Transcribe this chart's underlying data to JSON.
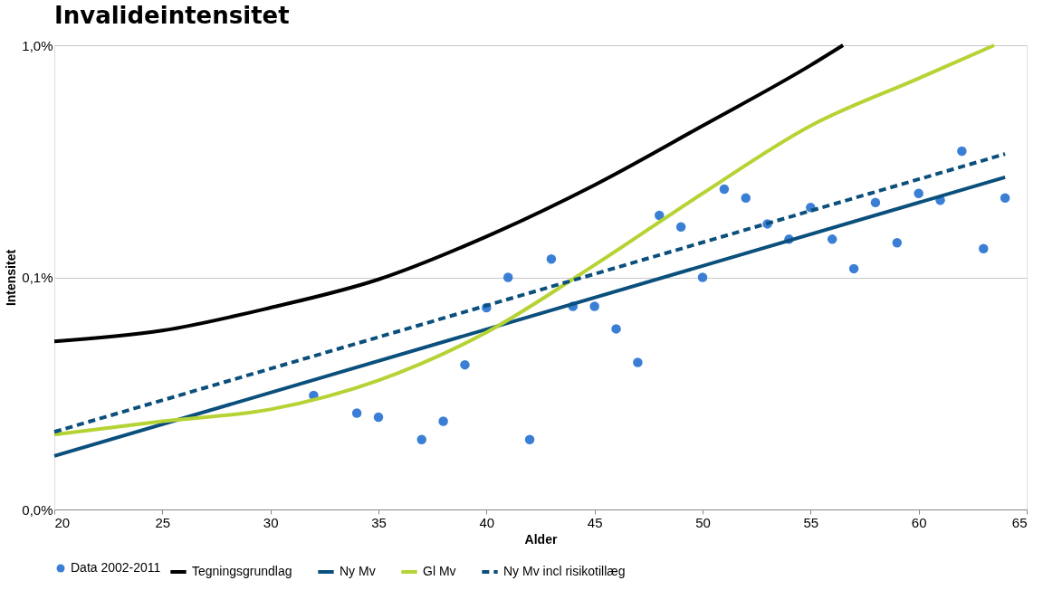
{
  "chart_data": {
    "type": "line",
    "title": "Invalideintensitet",
    "xlabel": "Alder",
    "ylabel": "Intensitet",
    "log": "y",
    "grid": "y",
    "legend": "bottom",
    "xlim": [
      20,
      65
    ],
    "xticks": [
      20,
      25,
      30,
      35,
      40,
      45,
      50,
      55,
      60,
      65
    ],
    "ylim": [
      0.01,
      1
    ],
    "yticks": [
      {
        "value": 0.01,
        "label": "0,0%"
      },
      {
        "value": 0.1,
        "label": "0,1%"
      },
      {
        "value": 1,
        "label": "1,0%"
      }
    ],
    "series": [
      {
        "name": "Data 2002-2011",
        "type": "scatter",
        "marker": "circle",
        "color": "#3a7fd5",
        "x": [
          32,
          34,
          35,
          37,
          38,
          39,
          40,
          41,
          42,
          43,
          44,
          45,
          46,
          47,
          48,
          49,
          50,
          51,
          52,
          53,
          54,
          55,
          56,
          57,
          58,
          59,
          60,
          61,
          62,
          63,
          64
        ],
        "values": [
          0.031,
          0.026,
          0.025,
          0.02,
          0.024,
          0.042,
          0.074,
          0.1,
          0.02,
          0.12,
          0.075,
          0.075,
          0.06,
          0.043,
          0.185,
          0.165,
          0.1,
          0.24,
          0.22,
          0.17,
          0.146,
          0.2,
          0.146,
          0.109,
          0.21,
          0.141,
          0.23,
          0.215,
          0.35,
          0.133,
          0.22
        ]
      },
      {
        "name": "Tegningsgrundlag",
        "line_style": "solid",
        "color": "#000000",
        "x": [
          20,
          25,
          30,
          35,
          40,
          45,
          50,
          55,
          56.5
        ],
        "values": [
          0.053,
          0.059,
          0.074,
          0.098,
          0.15,
          0.25,
          0.45,
          0.82,
          1.0
        ]
      },
      {
        "name": "Ny Mv",
        "line_style": "solid",
        "color": "#0b4f7c",
        "x": [
          20,
          64
        ],
        "values": [
          0.017,
          0.27
        ]
      },
      {
        "name": "Gl Mv",
        "line_style": "solid",
        "color": "#b5d334",
        "x": [
          20,
          25,
          30,
          35,
          40,
          45,
          50,
          55,
          60,
          63.5
        ],
        "values": [
          0.021,
          0.024,
          0.027,
          0.036,
          0.058,
          0.113,
          0.23,
          0.45,
          0.72,
          1.0
        ]
      },
      {
        "name": "Ny Mv incl risikotillæg",
        "line_style": "dashed",
        "color": "#0b4f7c",
        "x": [
          20,
          64
        ],
        "values": [
          0.0216,
          0.34
        ]
      }
    ]
  }
}
